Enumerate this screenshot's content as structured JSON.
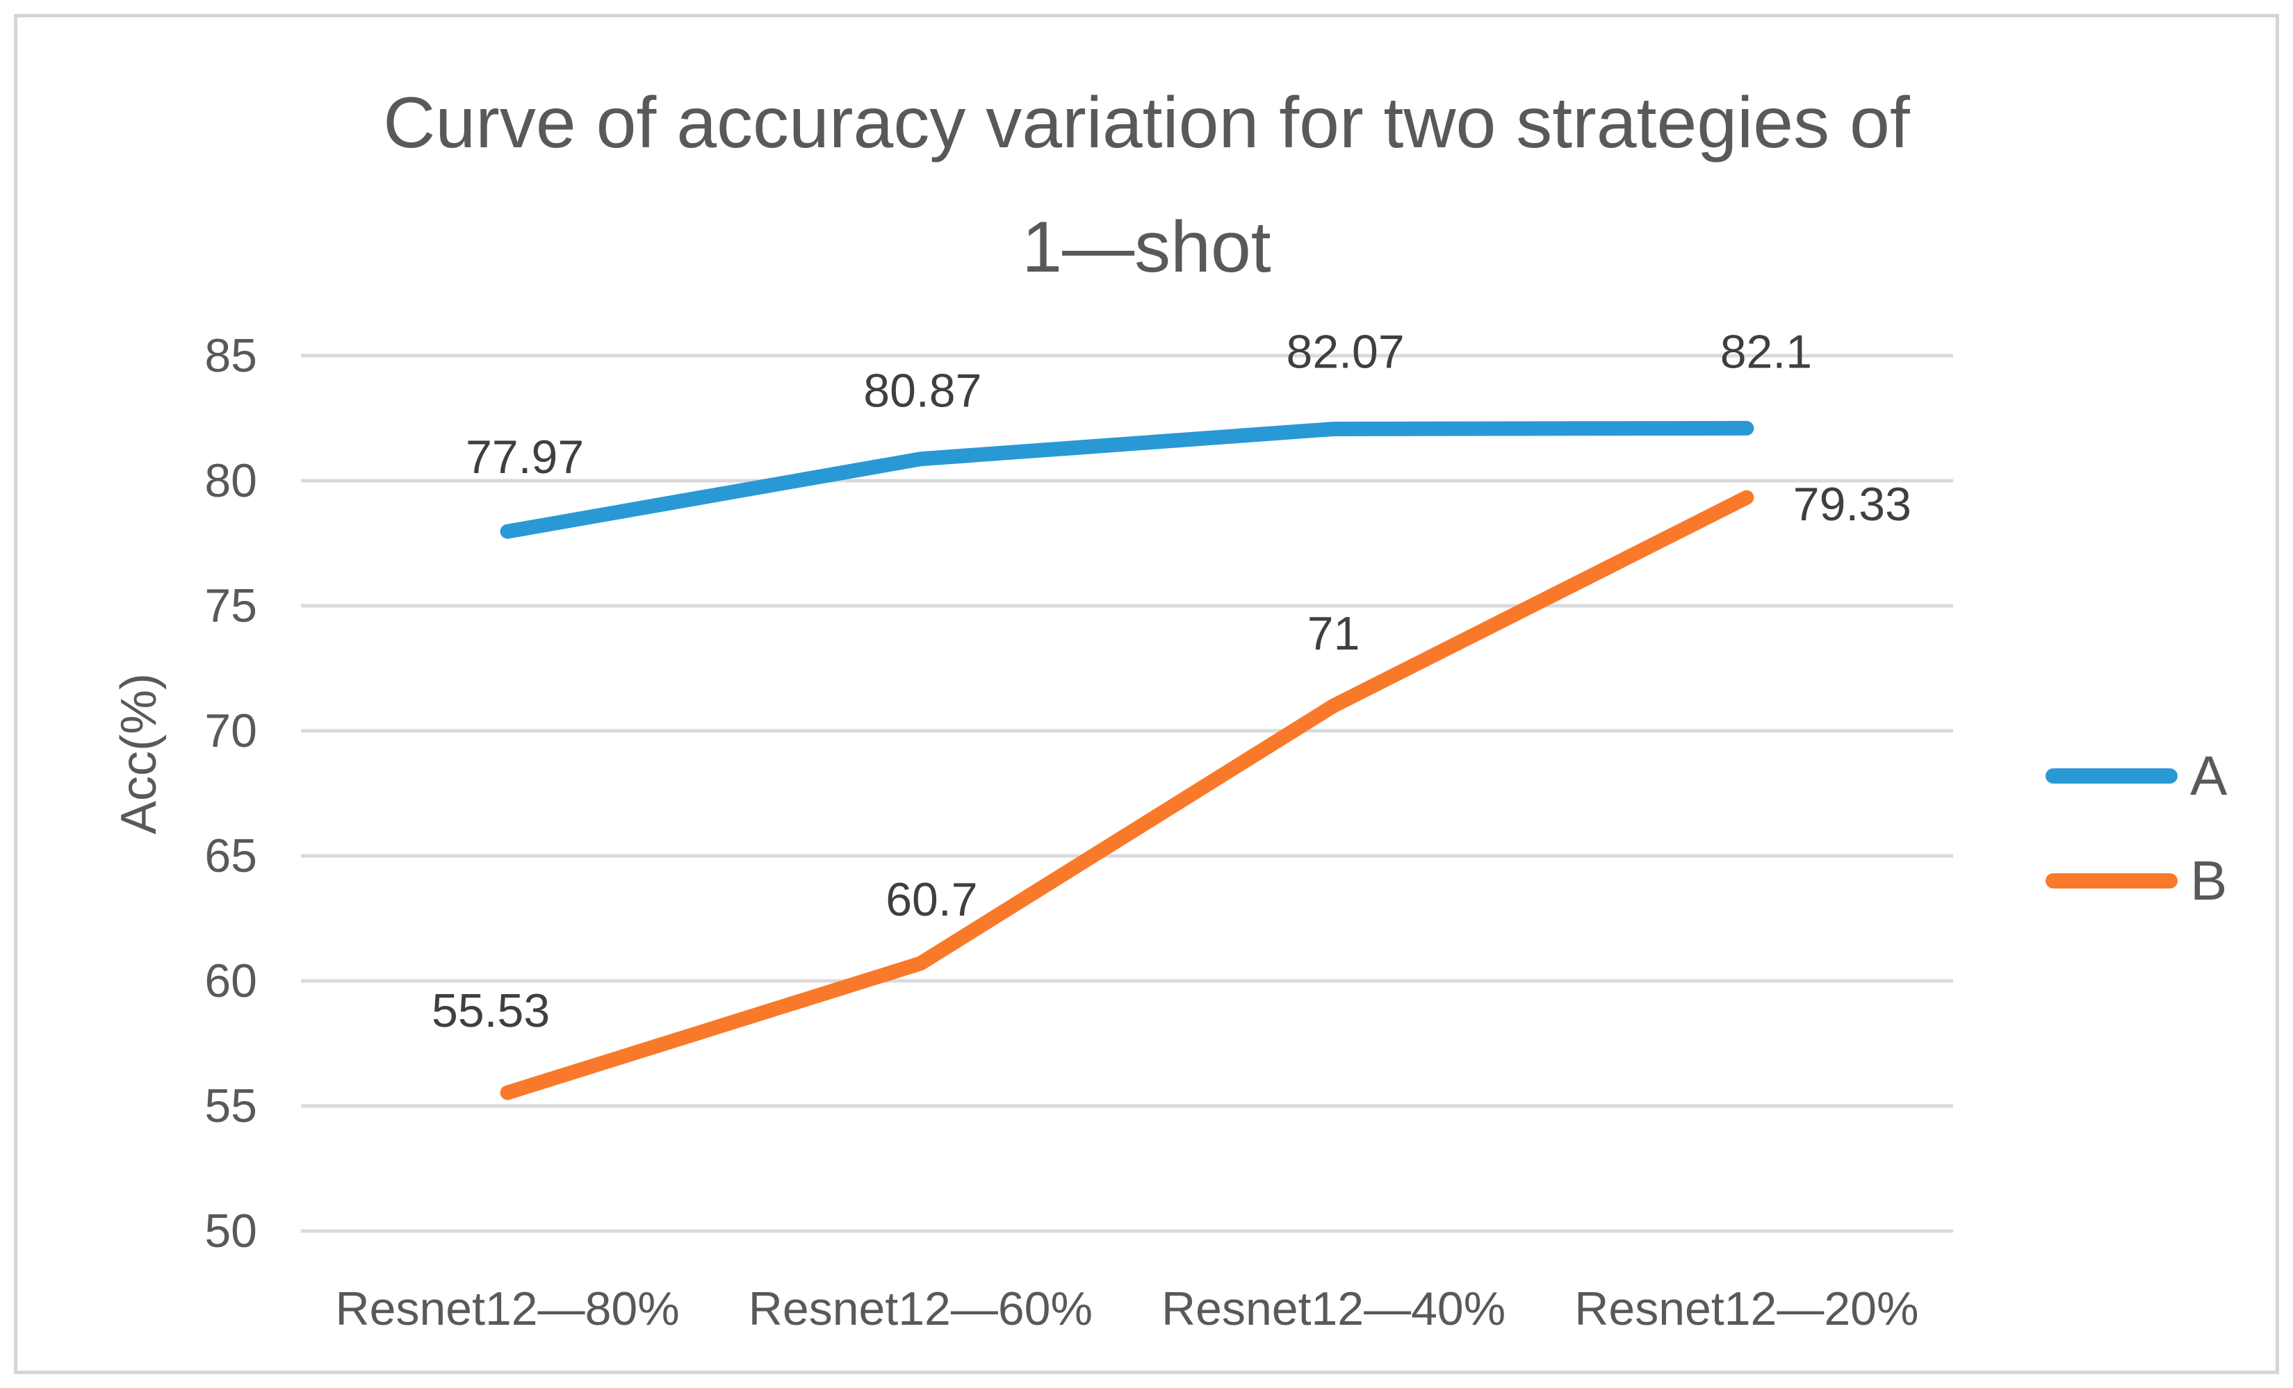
{
  "page": {
    "title_lines": [
      "Curve of accuracy variation for two strategies of",
      "1—shot"
    ]
  },
  "chart_data": {
    "type": "line",
    "title": "Curve of accuracy variation for two strategies of 1—shot",
    "categories": [
      "Resnet12—80%",
      "Resnet12—60%",
      "Resnet12—40%",
      "Resnet12—20%"
    ],
    "series": [
      {
        "name": "A",
        "values": [
          77.97,
          80.87,
          82.07,
          82.1
        ],
        "labels": [
          "77.97",
          "80.87",
          "82.07",
          "82.1"
        ],
        "color": "#2999d5"
      },
      {
        "name": "B",
        "values": [
          55.53,
          60.7,
          71,
          79.33
        ],
        "labels": [
          "55.53",
          "60.7",
          "71",
          "79.33"
        ],
        "color": "#f9792b"
      }
    ],
    "xlabel": "",
    "ylabel": "Acc(%)",
    "ylim": [
      50,
      85
    ],
    "yticks": [
      50,
      55,
      60,
      65,
      70,
      75,
      80,
      85
    ],
    "grid": true,
    "grid_color": "#dadada",
    "legend_position": "right",
    "axis_text_color": "#595959",
    "data_label_color": "#3f3f3f"
  }
}
